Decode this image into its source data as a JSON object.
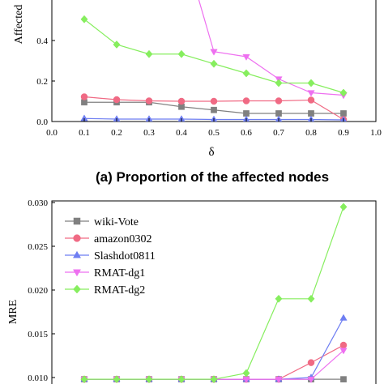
{
  "chart_data": [
    {
      "type": "line",
      "caption": "(a) Proportion of the affected nodes",
      "xlabel": "δ",
      "ylabel": "Affected",
      "xlim": [
        0.0,
        1.0
      ],
      "ylim": [
        0.0,
        0.6
      ],
      "xticks": [
        "0.0",
        "0.1",
        "0.2",
        "0.3",
        "0.4",
        "0.5",
        "0.6",
        "0.7",
        "0.8",
        "0.9",
        "1.0"
      ],
      "yticks": [
        "0.0",
        "0.2",
        "0.4"
      ],
      "grid": false,
      "series": [
        {
          "name": "wiki-Vote",
          "color": "#808080",
          "marker": "square",
          "x": [
            0.1,
            0.2,
            0.3,
            0.4,
            0.5,
            0.6,
            0.7,
            0.8,
            0.9
          ],
          "y": [
            0.095,
            0.095,
            0.095,
            0.073,
            0.057,
            0.04,
            0.04,
            0.04,
            0.04
          ]
        },
        {
          "name": "amazon0302",
          "color": "#f06a84",
          "marker": "circle",
          "x": [
            0.1,
            0.2,
            0.3,
            0.4,
            0.5,
            0.6,
            0.7,
            0.8,
            0.9
          ],
          "y": [
            0.122,
            0.108,
            0.102,
            0.1,
            0.1,
            0.102,
            0.102,
            0.106,
            0.01
          ]
        },
        {
          "name": "Slashdot0811",
          "color": "#6e7ef2",
          "marker": "triangle-up",
          "x": [
            0.1,
            0.2,
            0.3,
            0.4,
            0.5,
            0.6,
            0.7,
            0.8,
            0.9
          ],
          "y": [
            0.015,
            0.012,
            0.012,
            0.012,
            0.01,
            0.01,
            0.01,
            0.01,
            0.008
          ]
        },
        {
          "name": "RMAT-dg1",
          "color": "#ee70f0",
          "marker": "triangle-down",
          "x": [
            0.45,
            0.5,
            0.6,
            0.7,
            0.8,
            0.9
          ],
          "y": [
            0.62,
            0.345,
            0.32,
            0.21,
            0.142,
            0.13
          ]
        },
        {
          "name": "RMAT-dg2",
          "color": "#86ee5e",
          "marker": "diamond",
          "x": [
            0.1,
            0.2,
            0.3,
            0.4,
            0.5,
            0.6,
            0.7,
            0.8,
            0.9
          ],
          "y": [
            0.505,
            0.38,
            0.333,
            0.333,
            0.285,
            0.238,
            0.19,
            0.19,
            0.142
          ]
        }
      ]
    },
    {
      "type": "line",
      "xlabel": "",
      "ylabel": "MRE",
      "xlim": [
        0.0,
        1.0
      ],
      "ylim": [
        0.0095,
        0.0305
      ],
      "yticks": [
        "0.010",
        "0.015",
        "0.020",
        "0.025",
        "0.030"
      ],
      "grid": false,
      "legend_position": "top-left",
      "legend": [
        "wiki-Vote",
        "amazon0302",
        "Slashdot0811",
        "RMAT-dg1",
        "RMAT-dg2"
      ],
      "series": [
        {
          "name": "wiki-Vote",
          "color": "#808080",
          "marker": "square",
          "x": [
            0.1,
            0.2,
            0.3,
            0.4,
            0.5,
            0.6,
            0.7,
            0.8,
            0.9
          ],
          "y": [
            0.0098,
            0.0098,
            0.0098,
            0.0098,
            0.0098,
            0.0098,
            0.0098,
            0.0098,
            0.0098
          ]
        },
        {
          "name": "amazon0302",
          "color": "#f06a84",
          "marker": "circle",
          "x": [
            0.1,
            0.2,
            0.3,
            0.4,
            0.5,
            0.6,
            0.7,
            0.8,
            0.9
          ],
          "y": [
            0.0098,
            0.0098,
            0.0098,
            0.0098,
            0.0098,
            0.0098,
            0.0098,
            0.0117,
            0.0137
          ]
        },
        {
          "name": "Slashdot0811",
          "color": "#6e7ef2",
          "marker": "triangle-up",
          "x": [
            0.1,
            0.2,
            0.3,
            0.4,
            0.5,
            0.6,
            0.7,
            0.8,
            0.9
          ],
          "y": [
            0.0098,
            0.0098,
            0.0098,
            0.0098,
            0.0098,
            0.0098,
            0.0098,
            0.01,
            0.0168
          ]
        },
        {
          "name": "RMAT-dg1",
          "color": "#ee70f0",
          "marker": "triangle-down",
          "x": [
            0.1,
            0.2,
            0.3,
            0.4,
            0.5,
            0.6,
            0.7,
            0.8,
            0.9
          ],
          "y": [
            0.0098,
            0.0098,
            0.0098,
            0.0098,
            0.0098,
            0.0098,
            0.0098,
            0.0098,
            0.0131
          ]
        },
        {
          "name": "RMAT-dg2",
          "color": "#86ee5e",
          "marker": "diamond",
          "x": [
            0.1,
            0.2,
            0.3,
            0.4,
            0.5,
            0.6,
            0.7,
            0.8,
            0.9
          ],
          "y": [
            0.0098,
            0.0098,
            0.0098,
            0.0098,
            0.0098,
            0.0105,
            0.019,
            0.019,
            0.0295
          ]
        }
      ]
    }
  ]
}
